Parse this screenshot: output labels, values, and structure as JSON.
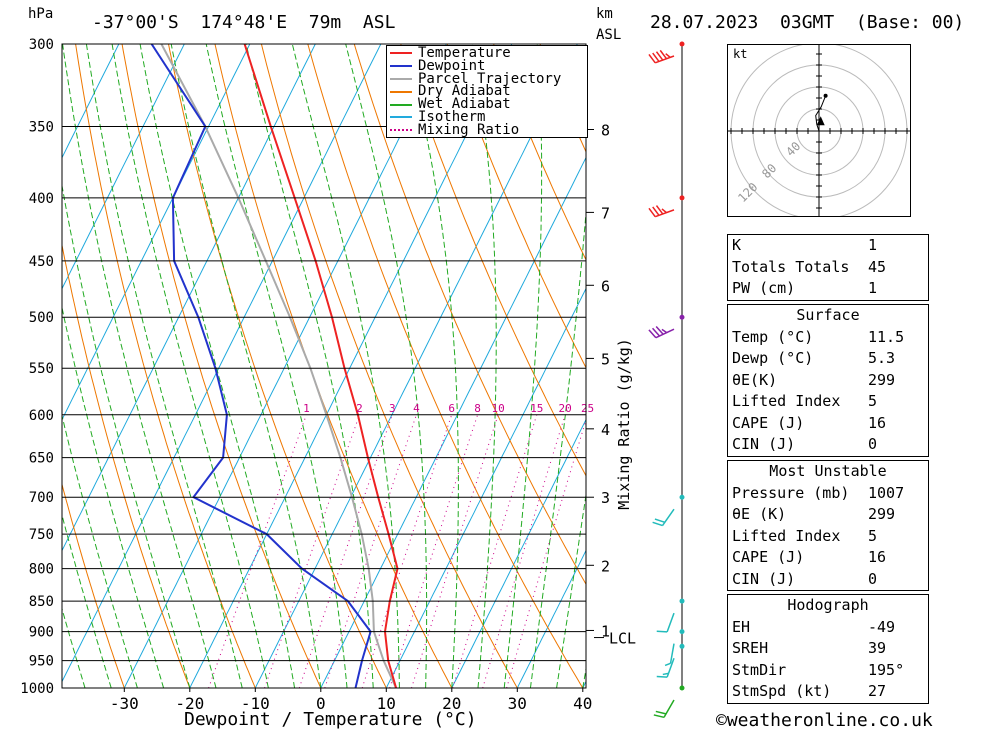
{
  "header": {
    "hpa_label": "hPa",
    "location": "-37°00'S  174°48'E  79m  ASL",
    "km_label": "km",
    "asl_label": "ASL",
    "datetime": "28.07.2023  03GMT  (Base: 00)"
  },
  "chart_data": {
    "type": "skew-t",
    "xlabel": "Dewpoint / Temperature (°C)",
    "ylabel_right": "Mixing Ratio (g/kg)",
    "xlim": [
      -40,
      40
    ],
    "ylim_hpa": [
      1000,
      300
    ],
    "x_ticks": [
      -30,
      -20,
      -10,
      0,
      10,
      20,
      30,
      40
    ],
    "pressure_ticks": [
      300,
      350,
      400,
      450,
      500,
      550,
      600,
      650,
      700,
      750,
      800,
      850,
      900,
      950,
      1000
    ],
    "km_ticks": [
      {
        "km": "8",
        "p": 352
      },
      {
        "km": "7",
        "p": 411
      },
      {
        "km": "6",
        "p": 471
      },
      {
        "km": "5",
        "p": 540
      },
      {
        "km": "4",
        "p": 616
      },
      {
        "km": "3",
        "p": 700
      },
      {
        "km": "2",
        "p": 795
      },
      {
        "km": "1",
        "p": 898
      }
    ],
    "lcl": {
      "label": "LCL",
      "p": 910
    },
    "mixing_ratio_labels": [
      "1",
      "2",
      "3",
      "4",
      "6",
      "8",
      "10",
      "15",
      "20",
      "25"
    ],
    "mixing_ratio_values": [
      1,
      2,
      3,
      4,
      6,
      8,
      10,
      15,
      20,
      25
    ],
    "legend": [
      "Temperature",
      "Dewpoint",
      "Parcel Trajectory",
      "Dry Adiabat",
      "Wet Adiabat",
      "Isotherm",
      "Mixing Ratio"
    ],
    "colors": {
      "temperature": "#ee2222",
      "dewpoint": "#2233cc",
      "parcel": "#aaaaaa",
      "dry_adiabat": "#ee7700",
      "wet_adiabat": "#22aa22",
      "isotherm": "#22aadd",
      "mixing_ratio": "#cc0088"
    },
    "temperature": [
      [
        1000,
        11.5
      ],
      [
        950,
        8.2
      ],
      [
        900,
        5.5
      ],
      [
        850,
        3.9
      ],
      [
        800,
        2.6
      ],
      [
        750,
        -1.4
      ],
      [
        700,
        -5.8
      ],
      [
        650,
        -10.4
      ],
      [
        600,
        -15.2
      ],
      [
        550,
        -20.8
      ],
      [
        500,
        -26.6
      ],
      [
        450,
        -33.4
      ],
      [
        400,
        -41.4
      ],
      [
        350,
        -50.5
      ],
      [
        300,
        -60.8
      ]
    ],
    "dewpoint": [
      [
        1000,
        5.3
      ],
      [
        950,
        4.2
      ],
      [
        900,
        3.3
      ],
      [
        850,
        -2.5
      ],
      [
        800,
        -12
      ],
      [
        750,
        -20
      ],
      [
        700,
        -34
      ],
      [
        650,
        -32.5
      ],
      [
        600,
        -35.2
      ],
      [
        550,
        -40.5
      ],
      [
        500,
        -47
      ],
      [
        450,
        -55
      ],
      [
        400,
        -60
      ],
      [
        350,
        -60.5
      ],
      [
        300,
        -75
      ]
    ],
    "parcel": [
      [
        1000,
        11.5
      ],
      [
        950,
        7.5
      ],
      [
        900,
        3.8
      ],
      [
        850,
        1.3
      ],
      [
        800,
        -1.8
      ],
      [
        750,
        -5.5
      ],
      [
        700,
        -9.8
      ],
      [
        650,
        -14.6
      ],
      [
        600,
        -20
      ],
      [
        550,
        -26
      ],
      [
        500,
        -33
      ],
      [
        450,
        -41
      ],
      [
        400,
        -50
      ],
      [
        350,
        -60.5
      ],
      [
        300,
        -73.5
      ]
    ],
    "wind_barbs": [
      {
        "p": 300,
        "dir": 250,
        "spd": 45,
        "color": "#ee2222"
      },
      {
        "p": 400,
        "dir": 250,
        "spd": 35,
        "color": "#ee2222"
      },
      {
        "p": 500,
        "dir": 245,
        "spd": 35,
        "color": "#8822aa"
      },
      {
        "p": 700,
        "dir": 215,
        "spd": 20,
        "color": "#22bbbb"
      },
      {
        "p": 850,
        "dir": 200,
        "spd": 10,
        "color": "#22bbbb"
      },
      {
        "p": 900,
        "dir": 190,
        "spd": 5,
        "color": "#22bbbb"
      },
      {
        "p": 925,
        "dir": 200,
        "spd": 15,
        "color": "#22bbbb"
      },
      {
        "p": 1000,
        "dir": 210,
        "spd": 20,
        "color": "#22aa22"
      }
    ]
  },
  "hodograph": {
    "unit": "kt",
    "ring_labels": [
      "40",
      "80",
      "120"
    ],
    "trace_uv": [
      [
        0,
        0
      ],
      [
        -2,
        6
      ],
      [
        -3,
        14
      ],
      [
        2,
        22
      ],
      [
        6,
        32
      ]
    ],
    "storm_motion_uv": [
      1.5,
      8
    ]
  },
  "indices": {
    "rows": [
      {
        "k": "K",
        "v": "1"
      },
      {
        "k": "Totals Totals",
        "v": "45"
      },
      {
        "k": "PW (cm)",
        "v": "1"
      }
    ]
  },
  "surface": {
    "title": "Surface",
    "rows": [
      {
        "k": "Temp (°C)",
        "v": "11.5"
      },
      {
        "k": "Dewp (°C)",
        "v": "5.3"
      },
      {
        "k": "θE(K)",
        "v": "299"
      },
      {
        "k": "Lifted Index",
        "v": "5"
      },
      {
        "k": "CAPE (J)",
        "v": "16"
      },
      {
        "k": "CIN (J)",
        "v": "0"
      }
    ]
  },
  "most_unstable": {
    "title": "Most Unstable",
    "rows": [
      {
        "k": "Pressure (mb)",
        "v": "1007"
      },
      {
        "k": "θE (K)",
        "v": "299"
      },
      {
        "k": "Lifted Index",
        "v": "5"
      },
      {
        "k": "CAPE (J)",
        "v": "16"
      },
      {
        "k": "CIN (J)",
        "v": "0"
      }
    ]
  },
  "hodograph_table": {
    "title": "Hodograph",
    "rows": [
      {
        "k": "EH",
        "v": "-49"
      },
      {
        "k": "SREH",
        "v": "39"
      },
      {
        "k": "StmDir",
        "v": "195°"
      },
      {
        "k": "StmSpd (kt)",
        "v": "27"
      }
    ]
  },
  "footer": {
    "copyright": "©weatheronline.co.uk"
  }
}
